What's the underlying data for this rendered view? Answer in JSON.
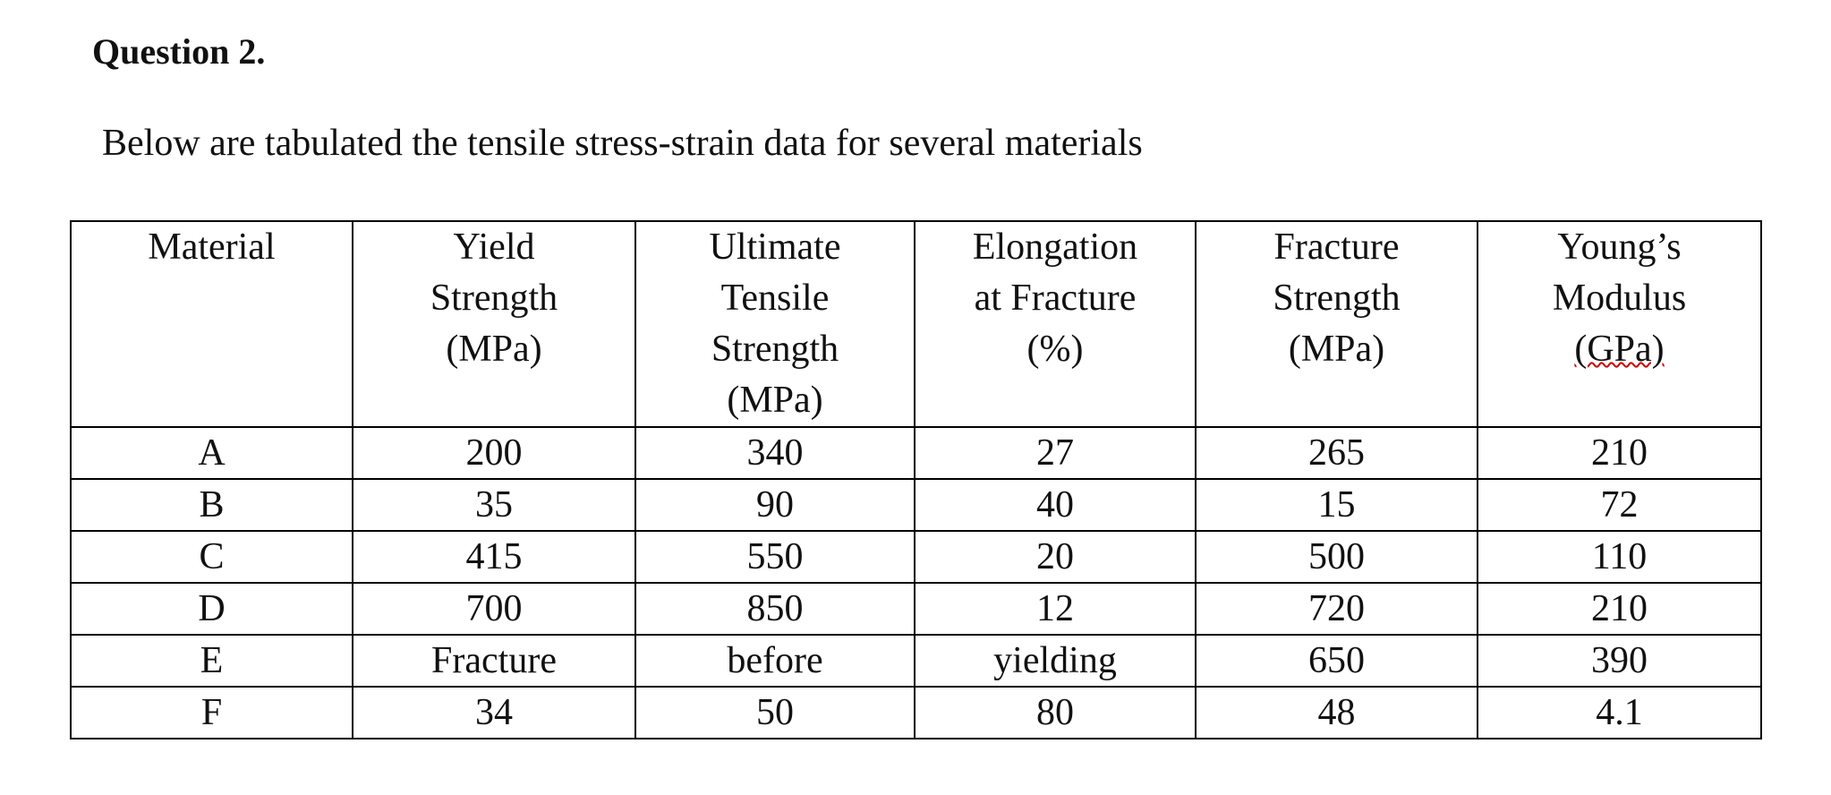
{
  "question": {
    "title": "Question 2.",
    "text": "Below are tabulated the tensile stress-strain data for several materials"
  },
  "table": {
    "header": [
      [
        "Material"
      ],
      [
        "Yield",
        "Strength",
        "(MPa)"
      ],
      [
        "Ultimate",
        "Tensile",
        "Strength",
        "(MPa)"
      ],
      [
        "Elongation",
        "at Fracture",
        "(%)"
      ],
      [
        "Fracture",
        "Strength",
        "(MPa)"
      ],
      [
        "Young’s",
        "Modulus",
        "(GPa)"
      ]
    ],
    "rows": [
      [
        "A",
        "200",
        "340",
        "27",
        "265",
        "210"
      ],
      [
        "B",
        "35",
        "90",
        "40",
        "15",
        "72"
      ],
      [
        "C",
        "415",
        "550",
        "20",
        "500",
        "110"
      ],
      [
        "D",
        "700",
        "850",
        "12",
        "720",
        "210"
      ],
      [
        "E",
        "Fracture",
        "before",
        "yielding",
        "650",
        "390"
      ],
      [
        "F",
        "34",
        "50",
        "80",
        "48",
        "4.1"
      ]
    ]
  }
}
